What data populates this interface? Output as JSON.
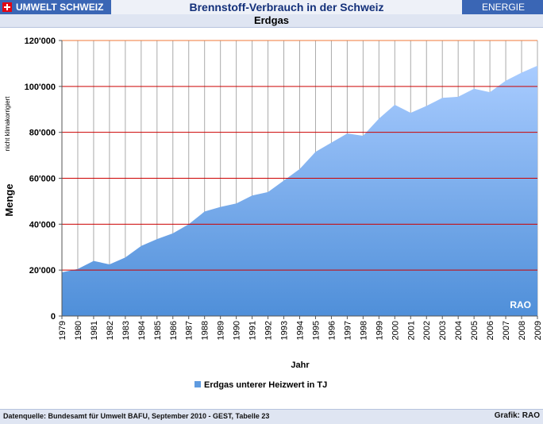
{
  "header": {
    "brand": "UMWELT SCHWEIZ",
    "title": "Brennstoff-Verbrauch in der Schweiz",
    "section": "ENERGIE",
    "subtitle": "Erdgas"
  },
  "footer": {
    "source": "Datenquelle: Bundesamt für Umwelt BAFU, September 2010 - GEST, Tabelle 23",
    "credit": "Grafik: RAO"
  },
  "colors": {
    "header_blue": "#3a66b5",
    "area_top": "#a9ccff",
    "area_bottom": "#4f8fd9",
    "gridline": "#cc0000",
    "top_gridline": "#f07a3a"
  },
  "chart_data": {
    "type": "area",
    "xlabel": "Jahr",
    "ylabel": "Menge",
    "ylabel_note": "nicht klimakorrigiert",
    "watermark": "RAO",
    "ylim": [
      0,
      120000
    ],
    "yticks": [
      "0",
      "20'000",
      "40'000",
      "60'000",
      "80'000",
      "100'000",
      "120'000"
    ],
    "grid": true,
    "legend_position": "bottom",
    "categories": [
      "1979",
      "1980",
      "1981",
      "1982",
      "1983",
      "1984",
      "1985",
      "1986",
      "1987",
      "1988",
      "1989",
      "1990",
      "1991",
      "1992",
      "1993",
      "1994",
      "1995",
      "1996",
      "1997",
      "1998",
      "1999",
      "2000",
      "2001",
      "2002",
      "2003",
      "2004",
      "2005",
      "2006",
      "2007",
      "2008",
      "2009"
    ],
    "series": [
      {
        "name": "Erdgas unterer Heizwert in TJ",
        "values": [
          19000,
          20500,
          24000,
          22500,
          25500,
          30500,
          33500,
          36000,
          40000,
          45500,
          47500,
          49000,
          52500,
          54000,
          59000,
          64000,
          71500,
          75500,
          79500,
          78500,
          86000,
          92000,
          88500,
          91500,
          95000,
          95500,
          99000,
          97500,
          102500,
          106000,
          109000
        ]
      }
    ]
  }
}
